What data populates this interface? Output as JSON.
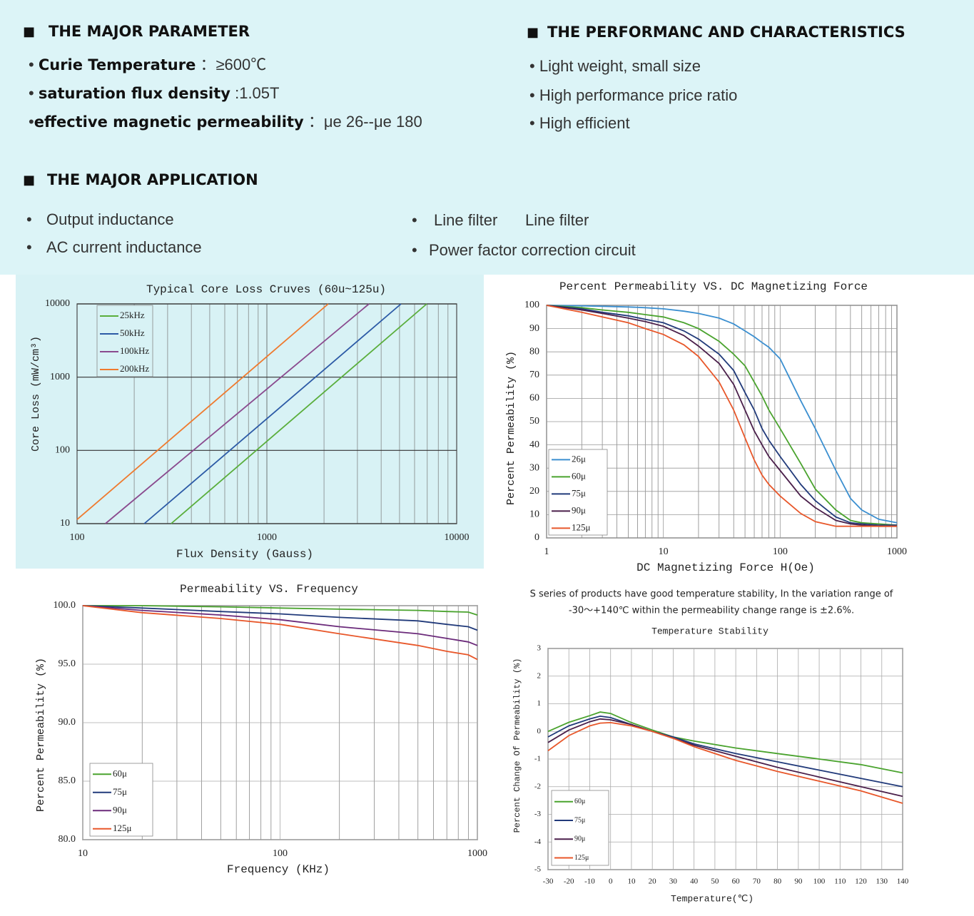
{
  "parameter": {
    "title": "THE MAJOR PARAMETER",
    "items": [
      {
        "label": "Curie Temperature",
        "value": "：≥600℃"
      },
      {
        "label": "saturation flux density",
        "value": ":1.05T"
      },
      {
        "label": "effective magnetic permeability",
        "value": "：μe 26--μe 180"
      }
    ]
  },
  "performance": {
    "title": "THE PERFORMANC AND CHARACTERISTICS",
    "items": [
      "Light weight, small size",
      "High performance price ratio",
      "High efficient"
    ]
  },
  "application": {
    "title": "THE MAJOR APPLICATION",
    "items": [
      "Output inductance",
      "AC current inductance",
      "Line filter",
      "Line filter",
      "Power factor correction circuit"
    ]
  },
  "note": [
    "S series of products have good temperature stability, In the variation range of",
    "-30～+140℃ within the permeability change range is ±2.6%."
  ],
  "chart_data": [
    {
      "type": "line",
      "title": "Typical Core Loss Cruves (60u~125u)",
      "x_label": "Flux Density (Gauss)",
      "y_label": "Core Loss (mW/cm³)",
      "xscale": "log",
      "yscale": "log",
      "xlim": [
        100,
        10000
      ],
      "ylim": [
        10,
        10000
      ],
      "xticks": [
        100,
        1000,
        10000
      ],
      "yticks": [
        10,
        100,
        1000,
        10000
      ],
      "grid": true,
      "minor_grid": "x",
      "legend": "upper left",
      "series": [
        {
          "name": "25kHz",
          "color": "#5aae3c",
          "x": [
            313,
            6950
          ],
          "values": [
            10,
            10000
          ]
        },
        {
          "name": "50kHz",
          "color": "#2c5aa6",
          "x": [
            226,
            5090
          ],
          "values": [
            10,
            10000
          ]
        },
        {
          "name": "100kHz",
          "color": "#8a4a8e",
          "x": [
            141,
            3450
          ],
          "values": [
            10,
            10000
          ]
        },
        {
          "name": "200kHz",
          "color": "#ef7a2e",
          "x": [
            100,
            2105
          ],
          "values": [
            11.4,
            10000
          ]
        }
      ]
    },
    {
      "type": "line",
      "title": "Percent Permeability VS. DC Magnetizing Force",
      "x_label": "DC Magnetizing Force H(Oe)",
      "y_label": "Percent Permeability (%)",
      "xscale": "log",
      "xlim": [
        1,
        1000
      ],
      "ylim": [
        0,
        100
      ],
      "xticks": [
        1,
        10,
        100,
        1000
      ],
      "yticks": [
        0,
        10,
        20,
        30,
        40,
        50,
        60,
        70,
        80,
        90,
        100
      ],
      "grid": true,
      "minor_grid": "x",
      "legend": "lower left",
      "x": [
        1,
        2,
        3,
        5,
        7,
        10,
        15,
        20,
        30,
        40,
        50,
        60,
        70,
        80,
        100,
        150,
        200,
        300,
        400,
        500,
        700,
        1000
      ],
      "series": [
        {
          "name": "26μ",
          "color": "#3b8fd0",
          "values": [
            100,
            99.8,
            99.6,
            99.3,
            99,
            98.5,
            97.5,
            96.5,
            94.5,
            92,
            89,
            86.5,
            84,
            82,
            77,
            59,
            47,
            29,
            17,
            12,
            8,
            6.5
          ]
        },
        {
          "name": "60μ",
          "color": "#4aa32e",
          "values": [
            100,
            99,
            98,
            97,
            96,
            95,
            92.5,
            90,
            84.5,
            79,
            74,
            67,
            61,
            55,
            47,
            32,
            21,
            12,
            7.5,
            6.5,
            6,
            5.5
          ]
        },
        {
          "name": "75μ",
          "color": "#213a7a",
          "values": [
            100,
            98.5,
            97,
            95.5,
            94,
            92.5,
            89,
            85.5,
            79,
            72,
            62.5,
            55,
            47,
            42,
            35,
            23,
            16,
            9,
            6.5,
            6,
            5.5,
            5.5
          ]
        },
        {
          "name": "90μ",
          "color": "#4a1f4a",
          "values": [
            100,
            98,
            96.5,
            94.5,
            93,
            91,
            87,
            82.5,
            75,
            66,
            55,
            46,
            40,
            35,
            29,
            18,
            13,
            7.5,
            6,
            5.5,
            5,
            5
          ]
        },
        {
          "name": "125μ",
          "color": "#e8572a",
          "values": [
            100,
            97,
            95,
            92.5,
            90,
            87.5,
            83,
            78,
            67,
            55,
            43,
            33.5,
            27,
            23,
            18,
            10.5,
            7,
            5,
            5,
            5,
            5,
            5
          ]
        }
      ]
    },
    {
      "type": "line",
      "title": "Permeability VS. Frequency",
      "x_label": "Frequency (KHz)",
      "y_label": "Percent Permeability (%)",
      "xscale": "log",
      "xlim": [
        10,
        1000
      ],
      "ylim": [
        80,
        100
      ],
      "xticks": [
        10,
        100,
        1000
      ],
      "yticks": [
        {
          "value": 80,
          "label": "80.0"
        },
        {
          "value": 85,
          "label": "85.0"
        },
        {
          "value": 90,
          "label": "90.0"
        },
        {
          "value": 95,
          "label": "95.0"
        },
        {
          "value": 100,
          "label": "100.0"
        }
      ],
      "grid": true,
      "minor_grid": "x",
      "legend": "lower left",
      "x": [
        10,
        20,
        50,
        100,
        200,
        500,
        700,
        900,
        1000
      ],
      "series": [
        {
          "name": "60μ",
          "color": "#4aa32e",
          "values": [
            100,
            100,
            99.9,
            99.8,
            99.7,
            99.6,
            99.5,
            99.45,
            99.2
          ]
        },
        {
          "name": "75μ",
          "color": "#213a7a",
          "values": [
            100,
            99.8,
            99.5,
            99.3,
            99,
            98.7,
            98.4,
            98.2,
            97.9
          ]
        },
        {
          "name": "90μ",
          "color": "#6b2a7a",
          "values": [
            100,
            99.6,
            99.2,
            98.8,
            98.2,
            97.6,
            97.2,
            96.9,
            96.6
          ]
        },
        {
          "name": "125μ",
          "color": "#e8572a",
          "values": [
            100,
            99.4,
            98.9,
            98.4,
            97.6,
            96.6,
            96.1,
            95.8,
            95.4
          ]
        }
      ]
    },
    {
      "type": "line",
      "title": "Temperature Stability",
      "x_label": "Temperature(℃)",
      "y_label": "Percent Change Of Permeability (%)",
      "xlim": [
        -30,
        140
      ],
      "ylim": [
        -5,
        3
      ],
      "xticks": [
        -30,
        -20,
        -10,
        0,
        10,
        20,
        30,
        40,
        50,
        60,
        70,
        80,
        90,
        100,
        110,
        120,
        130,
        140
      ],
      "yticks": [
        -5,
        -4,
        -3,
        -2,
        -1,
        0,
        1,
        2,
        3
      ],
      "grid": true,
      "legend": "lower left",
      "x": [
        -30,
        -20,
        -10,
        -5,
        0,
        10,
        20,
        30,
        40,
        60,
        80,
        100,
        120,
        140
      ],
      "series": [
        {
          "name": "60μ",
          "color": "#4aa32e",
          "values": [
            0,
            0.33,
            0.57,
            0.7,
            0.65,
            0.32,
            0.05,
            -0.2,
            -0.35,
            -0.6,
            -0.8,
            -1,
            -1.2,
            -1.5
          ]
        },
        {
          "name": "75μ",
          "color": "#213a7a",
          "values": [
            -0.2,
            0.2,
            0.45,
            0.55,
            0.5,
            0.25,
            0,
            -0.2,
            -0.45,
            -0.8,
            -1.1,
            -1.4,
            -1.7,
            -2
          ]
        },
        {
          "name": "90μ",
          "color": "#4a1f4a",
          "values": [
            -0.4,
            0.05,
            0.35,
            0.45,
            0.42,
            0.25,
            0,
            -0.25,
            -0.5,
            -0.9,
            -1.3,
            -1.65,
            -2,
            -2.35
          ]
        },
        {
          "name": "125μ",
          "color": "#e8572a",
          "values": [
            -0.7,
            -0.15,
            0.2,
            0.3,
            0.32,
            0.2,
            0,
            -0.25,
            -0.55,
            -1.05,
            -1.45,
            -1.8,
            -2.15,
            -2.6
          ]
        }
      ]
    }
  ]
}
